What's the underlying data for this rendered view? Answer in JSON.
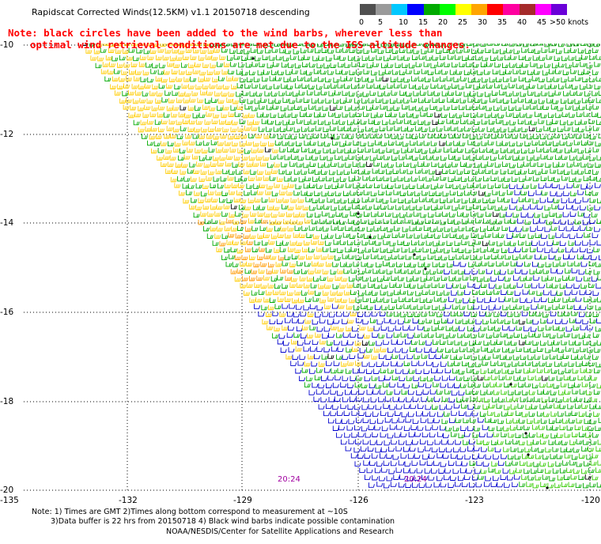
{
  "header": {
    "title": "Rapidscat Corrected Winds(12.5KM) v1.1 20150718 descending"
  },
  "note": {
    "line1": "Note: black circles have been added to the wind barbs, wherever less than",
    "line2": "optimal wind retrieval conditions are met due to the ISS altitude changes."
  },
  "legend": {
    "labels": [
      "0",
      "5",
      "10",
      "15",
      "20",
      "25",
      "30",
      "35",
      "40",
      "45",
      ">50 knots"
    ],
    "colors": [
      "#505050",
      "#9a9a9a",
      "#00c8ff",
      "#0000ff",
      "#00aa00",
      "#00ff00",
      "#ffff00",
      "#ffa500",
      "#ff0000",
      "#ff00a0",
      "#a52a2a",
      "#ff00ff",
      "#6a00d8"
    ]
  },
  "map": {
    "lat_labels": [
      "-10",
      "-12",
      "-14",
      "-16",
      "-18",
      "-20"
    ],
    "lon_labels": [
      "-135",
      "-132",
      "-129",
      "-126",
      "-123",
      "-120"
    ],
    "times": [
      "20:24",
      "20:24"
    ],
    "swath_colors": {
      "blue": "#0000cc",
      "green": "#00aa00",
      "lime": "#33cc00",
      "yellow": "#ffcc00",
      "orange": "#ff9900",
      "black": "#000000"
    }
  },
  "footer": {
    "note1": "Note: 1) Times are GMT 2)Times along bottom correspond to measurement at ~10S",
    "note2": "3)Data buffer is 22 hrs from 20150718 4) Black wind barbs indicate possible contamination",
    "credit": "NOAA/NESDIS/Center for Satellite Applications and Research"
  }
}
